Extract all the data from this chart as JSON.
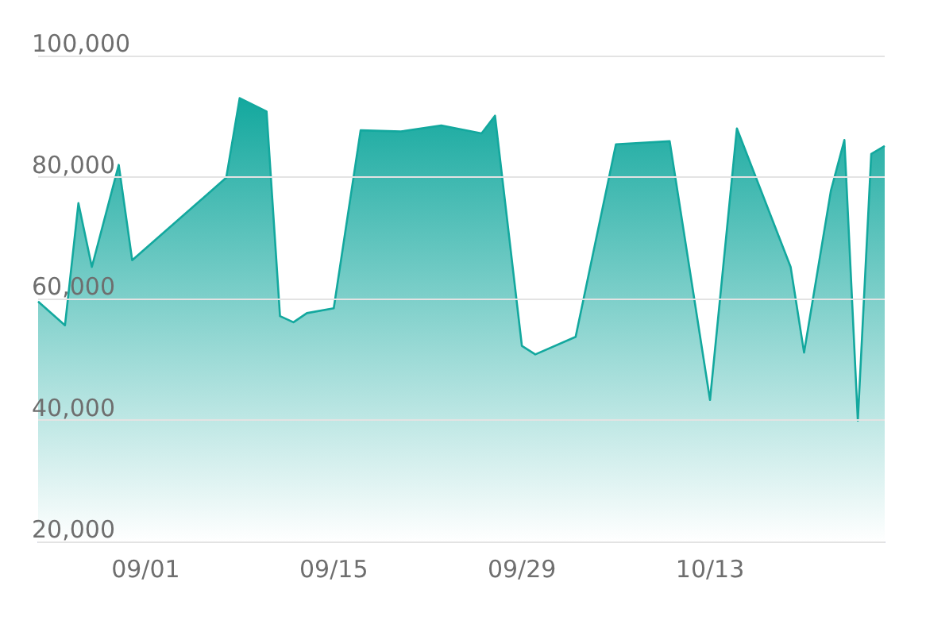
{
  "chart_data": {
    "type": "area",
    "color": "#13a89e",
    "x": [
      "--08-24",
      "--08-26",
      "--08-27",
      "--08-28",
      "--08-30",
      "--08-31",
      "--09-07",
      "--09-08",
      "--09-10",
      "--09-11",
      "--09-12",
      "--09-13",
      "--09-15",
      "--09-17",
      "--09-20",
      "--09-23",
      "--09-26",
      "--09-27",
      "--09-29",
      "--09-30",
      "--10-03",
      "--10-06",
      "--10-10",
      "--10-13",
      "--10-15",
      "--10-19",
      "--10-20",
      "--10-22",
      "--10-23",
      "--10-24",
      "--10-25",
      "--10-26"
    ],
    "values": [
      59500,
      55600,
      75700,
      65200,
      82000,
      66300,
      79900,
      93000,
      90800,
      57100,
      56100,
      57600,
      58400,
      87700,
      87500,
      88500,
      87200,
      90100,
      52200,
      50800,
      53700,
      85400,
      85900,
      43300,
      88000,
      65200,
      51100,
      77800,
      86100,
      39900,
      83800,
      85100
    ],
    "xlim": [
      "--08-24",
      "--10-26"
    ],
    "xticks": [
      {
        "value": "--09-01",
        "label": "09/01"
      },
      {
        "value": "--09-15",
        "label": "09/15"
      },
      {
        "value": "--09-29",
        "label": "09/29"
      },
      {
        "value": "--10-13",
        "label": "10/13"
      }
    ],
    "ylim": [
      20000,
      100000
    ],
    "yticks": [
      {
        "value": 20000,
        "label": "20,000"
      },
      {
        "value": 40000,
        "label": "40,000"
      },
      {
        "value": 60000,
        "label": "60,000"
      },
      {
        "value": 80000,
        "label": "80,000"
      },
      {
        "value": 100000,
        "label": "100,000"
      }
    ],
    "grid": "y",
    "marker": "none",
    "line_style": "solid"
  }
}
